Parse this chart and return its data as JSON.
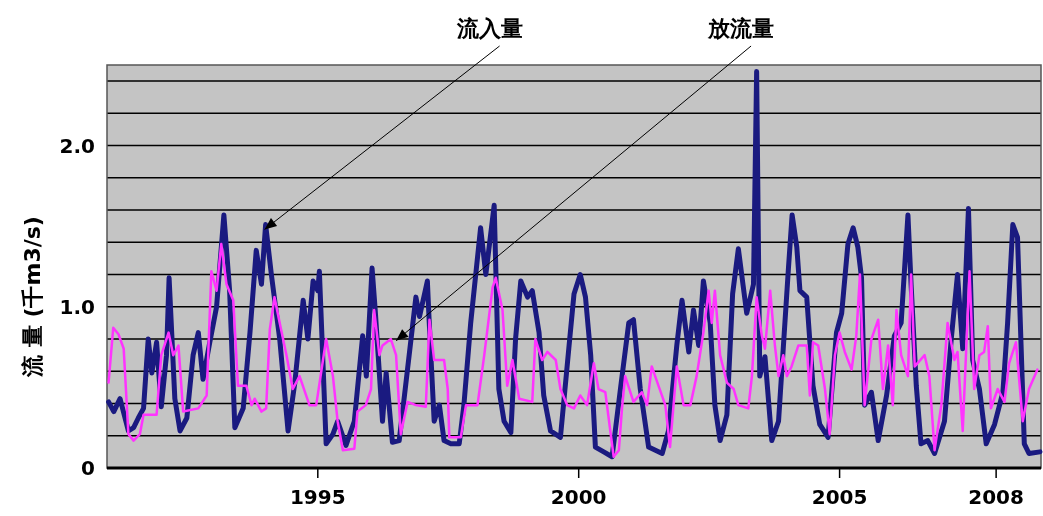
{
  "chart_data": {
    "type": "line",
    "ylabel": "流 量 (千m3/s)",
    "xlim": [
      1990.96,
      2008.86
    ],
    "ylim": [
      0,
      2.5
    ],
    "xticks": [
      1995,
      2000,
      2005,
      2008
    ],
    "yticks": [
      {
        "value": 0,
        "label": "0"
      },
      {
        "value": 0.2,
        "label": null
      },
      {
        "value": 0.4,
        "label": null
      },
      {
        "value": 0.6,
        "label": null
      },
      {
        "value": 0.8,
        "label": null
      },
      {
        "value": 1.0,
        "label": "1.0"
      },
      {
        "value": 1.2,
        "label": null
      },
      {
        "value": 1.4,
        "label": null
      },
      {
        "value": 1.6,
        "label": null
      },
      {
        "value": 1.8,
        "label": null
      },
      {
        "value": 2.0,
        "label": "2.0"
      },
      {
        "value": 2.2,
        "label": null
      },
      {
        "value": 2.4,
        "label": null
      }
    ],
    "grid": "y",
    "annotations": [
      {
        "text": "流入量",
        "x": 1993.98,
        "y": 1.48
      },
      {
        "text": "放流量",
        "x": 1996.5,
        "y": 0.79
      }
    ],
    "series": [
      {
        "color": "#1a1a80",
        "x": [
          1990.99,
          1991.09,
          1991.21,
          1991.37,
          1991.47,
          1991.56,
          1991.66,
          1991.75,
          1991.82,
          1991.91,
          1992.0,
          1992.1,
          1992.15,
          1992.26,
          1992.36,
          1992.49,
          1992.61,
          1992.71,
          1992.8,
          1992.93,
          1993.06,
          1993.2,
          1993.31,
          1993.41,
          1993.57,
          1993.7,
          1993.82,
          1993.92,
          1994.0,
          1994.11,
          1994.27,
          1994.43,
          1994.56,
          1994.72,
          1994.81,
          1994.91,
          1995.0,
          1995.03,
          1995.16,
          1995.29,
          1995.38,
          1995.54,
          1995.7,
          1995.86,
          1995.93,
          1996.04,
          1996.1,
          1996.24,
          1996.31,
          1996.43,
          1996.56,
          1996.69,
          1996.88,
          1996.95,
          1997.1,
          1997.13,
          1997.23,
          1997.33,
          1997.42,
          1997.55,
          1997.71,
          1997.8,
          1997.93,
          1998.12,
          1998.22,
          1998.38,
          1998.47,
          1998.57,
          1998.7,
          1998.79,
          1998.89,
          1999.02,
          1999.11,
          1999.24,
          1999.33,
          1999.46,
          1999.65,
          1999.81,
          1999.91,
          2000.03,
          2000.13,
          2000.23,
          2000.32,
          2000.48,
          2000.64,
          2000.8,
          2000.96,
          2001.05,
          2001.18,
          2001.34,
          2001.6,
          2001.72,
          2001.88,
          2001.98,
          2002.11,
          2002.2,
          2002.3,
          2002.39,
          2002.52,
          2002.61,
          2002.71,
          2002.84,
          2002.95,
          2003.06,
          2003.22,
          2003.35,
          2003.41,
          2003.47,
          2003.57,
          2003.7,
          2003.83,
          2004.02,
          2004.09,
          2004.18,
          2004.24,
          2004.37,
          2004.49,
          2004.62,
          2004.78,
          2004.94,
          2005.04,
          2005.16,
          2005.26,
          2005.35,
          2005.42,
          2005.48,
          2005.61,
          2005.74,
          2005.9,
          2006.05,
          2006.18,
          2006.31,
          2006.37,
          2006.47,
          2006.56,
          2006.69,
          2006.82,
          2007.01,
          2007.14,
          2007.26,
          2007.36,
          2007.47,
          2007.55,
          2007.68,
          2007.81,
          2007.97,
          2008.13,
          2008.22,
          2008.32,
          2008.41,
          2008.54,
          2008.63,
          2008.84
        ],
        "values": [
          0.41,
          0.35,
          0.43,
          0.23,
          0.25,
          0.31,
          0.37,
          0.8,
          0.59,
          0.78,
          0.38,
          0.7,
          1.18,
          0.43,
          0.23,
          0.31,
          0.7,
          0.84,
          0.55,
          0.78,
          1.0,
          1.57,
          1.1,
          0.25,
          0.37,
          0.84,
          1.35,
          1.14,
          1.51,
          1.2,
          0.8,
          0.23,
          0.53,
          1.04,
          0.8,
          1.16,
          1.1,
          1.22,
          0.15,
          0.21,
          0.29,
          0.14,
          0.29,
          0.82,
          0.57,
          1.24,
          0.98,
          0.29,
          0.59,
          0.16,
          0.17,
          0.53,
          1.06,
          0.94,
          1.16,
          0.94,
          0.29,
          0.39,
          0.17,
          0.15,
          0.15,
          0.39,
          0.9,
          1.49,
          1.2,
          1.63,
          0.49,
          0.29,
          0.22,
          0.8,
          1.16,
          1.06,
          1.1,
          0.84,
          0.45,
          0.23,
          0.19,
          0.74,
          1.08,
          1.2,
          1.06,
          0.7,
          0.13,
          0.1,
          0.07,
          0.49,
          0.9,
          0.92,
          0.49,
          0.13,
          0.09,
          0.23,
          0.76,
          1.04,
          0.72,
          0.98,
          0.76,
          1.16,
          0.9,
          0.39,
          0.17,
          0.33,
          1.08,
          1.36,
          0.96,
          1.14,
          2.46,
          0.57,
          0.69,
          0.17,
          0.29,
          1.24,
          1.57,
          1.37,
          1.1,
          1.06,
          0.51,
          0.27,
          0.19,
          0.84,
          0.96,
          1.39,
          1.49,
          1.37,
          1.18,
          0.39,
          0.47,
          0.17,
          0.45,
          0.82,
          0.9,
          1.57,
          1.14,
          0.51,
          0.15,
          0.17,
          0.09,
          0.29,
          0.8,
          1.2,
          0.74,
          1.61,
          0.67,
          0.49,
          0.15,
          0.27,
          0.47,
          0.9,
          1.51,
          1.43,
          0.15,
          0.09,
          0.1
        ]
      },
      {
        "color": "#ff33ff",
        "x": [
          1990.99,
          1991.08,
          1991.18,
          1991.28,
          1991.37,
          1991.47,
          1991.59,
          1991.66,
          1991.91,
          1992.0,
          1992.14,
          1992.23,
          1992.33,
          1992.42,
          1992.71,
          1992.87,
          1992.96,
          1993.06,
          1993.15,
          1993.25,
          1993.38,
          1993.47,
          1993.63,
          1993.73,
          1993.79,
          1993.92,
          1994.01,
          1994.08,
          1994.17,
          1994.27,
          1994.4,
          1994.52,
          1994.65,
          1994.84,
          1994.97,
          1995.16,
          1995.29,
          1995.38,
          1995.48,
          1995.7,
          1995.76,
          1995.92,
          1996.02,
          1996.08,
          1996.18,
          1996.24,
          1996.4,
          1996.5,
          1996.59,
          1996.72,
          1996.88,
          1997.07,
          1997.14,
          1997.23,
          1997.42,
          1997.49,
          1997.52,
          1997.74,
          1997.84,
          1998.06,
          1998.19,
          1998.35,
          1998.41,
          1998.54,
          1998.63,
          1998.73,
          1998.86,
          1999.11,
          1999.17,
          1999.3,
          1999.4,
          1999.56,
          1999.65,
          1999.78,
          1999.91,
          2000.03,
          2000.16,
          2000.29,
          2000.38,
          2000.51,
          2000.67,
          2000.77,
          2000.83,
          2000.89,
          2001.05,
          2001.21,
          2001.31,
          2001.4,
          2001.53,
          2001.66,
          2001.75,
          2001.88,
          2002.01,
          2002.14,
          2002.26,
          2002.39,
          2002.49,
          2002.55,
          2002.61,
          2002.71,
          2002.84,
          2002.97,
          2003.06,
          2003.25,
          2003.32,
          2003.41,
          2003.51,
          2003.57,
          2003.67,
          2003.76,
          2003.83,
          2003.92,
          2003.99,
          2004.08,
          2004.21,
          2004.37,
          2004.43,
          2004.49,
          2004.59,
          2004.72,
          2004.81,
          2004.91,
          2005.0,
          2005.1,
          2005.23,
          2005.32,
          2005.39,
          2005.48,
          2005.61,
          2005.74,
          2005.83,
          2005.93,
          2006.02,
          2006.09,
          2006.18,
          2006.31,
          2006.37,
          2006.44,
          2006.63,
          2006.72,
          2006.82,
          2006.95,
          2007.07,
          2007.2,
          2007.26,
          2007.36,
          2007.49,
          2007.58,
          2007.68,
          2007.77,
          2007.84,
          2007.9,
          2008.03,
          2008.16,
          2008.25,
          2008.38,
          2008.51,
          2008.63,
          2008.79
        ],
        "values": [
          0.53,
          0.87,
          0.83,
          0.74,
          0.21,
          0.17,
          0.21,
          0.33,
          0.33,
          0.7,
          0.84,
          0.7,
          0.76,
          0.35,
          0.37,
          0.45,
          1.22,
          1.1,
          1.39,
          1.14,
          1.04,
          0.51,
          0.51,
          0.39,
          0.43,
          0.35,
          0.37,
          0.86,
          1.06,
          0.9,
          0.7,
          0.49,
          0.57,
          0.39,
          0.39,
          0.8,
          0.57,
          0.29,
          0.11,
          0.12,
          0.35,
          0.39,
          0.49,
          0.98,
          0.7,
          0.76,
          0.8,
          0.7,
          0.21,
          0.41,
          0.39,
          0.38,
          0.92,
          0.67,
          0.67,
          0.49,
          0.19,
          0.19,
          0.39,
          0.39,
          0.7,
          1.12,
          1.18,
          0.98,
          0.51,
          0.67,
          0.43,
          0.41,
          0.8,
          0.67,
          0.72,
          0.67,
          0.49,
          0.39,
          0.37,
          0.45,
          0.39,
          0.65,
          0.49,
          0.47,
          0.07,
          0.11,
          0.37,
          0.57,
          0.41,
          0.47,
          0.39,
          0.63,
          0.51,
          0.39,
          0.13,
          0.63,
          0.39,
          0.39,
          0.57,
          0.84,
          1.1,
          0.9,
          1.1,
          0.7,
          0.53,
          0.49,
          0.39,
          0.37,
          0.57,
          1.06,
          0.82,
          0.74,
          1.1,
          0.76,
          0.57,
          0.7,
          0.57,
          0.63,
          0.76,
          0.76,
          0.45,
          0.78,
          0.76,
          0.49,
          0.21,
          0.7,
          0.84,
          0.72,
          0.61,
          0.82,
          1.2,
          0.39,
          0.8,
          0.92,
          0.49,
          0.76,
          0.39,
          0.98,
          0.7,
          0.57,
          1.2,
          0.63,
          0.7,
          0.57,
          0.11,
          0.39,
          0.9,
          0.67,
          0.72,
          0.23,
          1.22,
          0.49,
          0.7,
          0.72,
          0.88,
          0.37,
          0.49,
          0.41,
          0.65,
          0.78,
          0.29,
          0.49,
          0.61
        ]
      }
    ]
  }
}
